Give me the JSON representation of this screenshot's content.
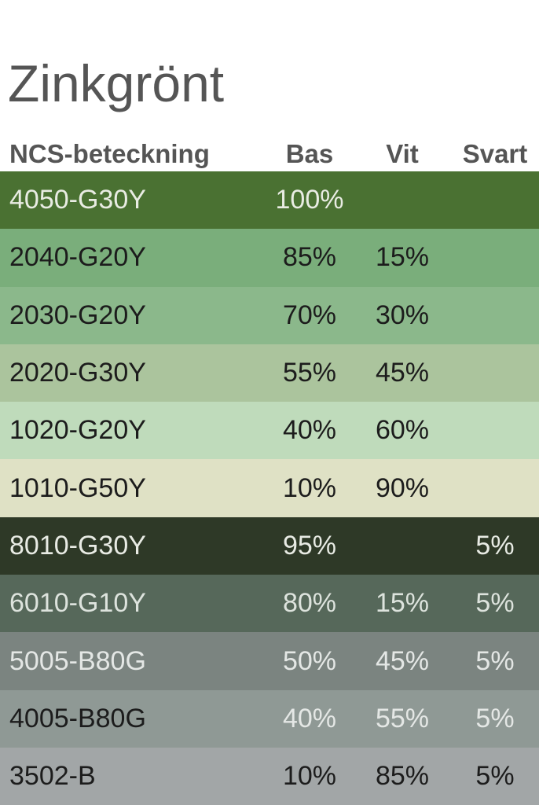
{
  "title": "Zinkgrönt",
  "headers": {
    "name": "NCS-beteckning",
    "bas": "Bas",
    "vit": "Vit",
    "svart": "Svart"
  },
  "rows": [
    {
      "name": "4050-G30Y",
      "bas": "100%",
      "vit": "",
      "svart": "",
      "bg": "#4a7132",
      "fg": "#e9ece3"
    },
    {
      "name": "2040-G20Y",
      "bas": "85%",
      "vit": "15%",
      "svart": "",
      "bg": "#7aae7b",
      "fg": "#1c1c1c"
    },
    {
      "name": "2030-G20Y",
      "bas": "70%",
      "vit": "30%",
      "svart": "",
      "bg": "#8bb88b",
      "fg": "#1c1c1c"
    },
    {
      "name": "2020-G30Y",
      "bas": "55%",
      "vit": "45%",
      "svart": "",
      "bg": "#abc49d",
      "fg": "#1c1c1c"
    },
    {
      "name": "1020-G20Y",
      "bas": "40%",
      "vit": "60%",
      "svart": "",
      "bg": "#bfdbbb",
      "fg": "#1c1c1c"
    },
    {
      "name": "1010-G50Y",
      "bas": "10%",
      "vit": "90%",
      "svart": "",
      "bg": "#dfe1c5",
      "fg": "#1c1c1c"
    },
    {
      "name": "8010-G30Y",
      "bas": "95%",
      "vit": "",
      "svart": "5%",
      "bg": "#2e3927",
      "fg": "#e8ebe4"
    },
    {
      "name": "6010-G10Y",
      "bas": "80%",
      "vit": "15%",
      "svart": "5%",
      "bg": "#56685a",
      "fg": "#dde3dd"
    },
    {
      "name": "5005-B80G",
      "bas": "50%",
      "vit": "45%",
      "svart": "5%",
      "bg": "#7b8480",
      "fg": "#e4e7e5"
    },
    {
      "name": "4005-B80G",
      "bas": "40%",
      "vit": "55%",
      "svart": "5%",
      "bg": "#8f9995",
      "fg": "#1c1c1c",
      "fg_values": "#e4e7e5"
    },
    {
      "name": "3502-B",
      "bas": "10%",
      "vit": "85%",
      "svart": "5%",
      "bg": "#a2a6a7",
      "fg": "#1c1c1c"
    }
  ]
}
